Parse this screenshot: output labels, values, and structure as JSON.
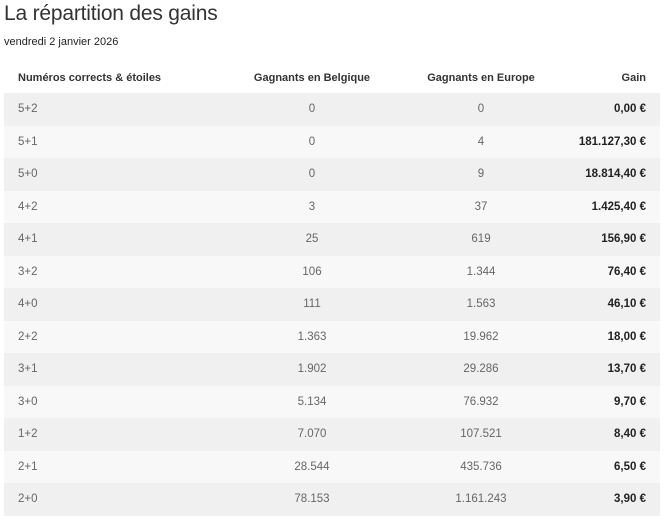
{
  "page": {
    "title": "La répartition des gains",
    "date": "vendredi 2 janvier 2026"
  },
  "table": {
    "headers": [
      "Numéros corrects & étoiles",
      "Gagnants en Belgique",
      "Gagnants en Europe",
      "Gain"
    ],
    "rows": [
      [
        "5+2",
        "0",
        "0",
        "0,00 €"
      ],
      [
        "5+1",
        "0",
        "4",
        "181.127,30 €"
      ],
      [
        "5+0",
        "0",
        "9",
        "18.814,40 €"
      ],
      [
        "4+2",
        "3",
        "37",
        "1.425,40 €"
      ],
      [
        "4+1",
        "25",
        "619",
        "156,90 €"
      ],
      [
        "3+2",
        "106",
        "1.344",
        "76,40 €"
      ],
      [
        "4+0",
        "111",
        "1.563",
        "46,10 €"
      ],
      [
        "2+2",
        "1.363",
        "19.962",
        "18,00 €"
      ],
      [
        "3+1",
        "1.902",
        "29.286",
        "13,70 €"
      ],
      [
        "3+0",
        "5.134",
        "76.932",
        "9,70 €"
      ],
      [
        "1+2",
        "7.070",
        "107.521",
        "8,40 €"
      ],
      [
        "2+1",
        "28.544",
        "435.736",
        "6,50 €"
      ],
      [
        "2+0",
        "78.153",
        "1.161.243",
        "3,90 €"
      ]
    ]
  }
}
